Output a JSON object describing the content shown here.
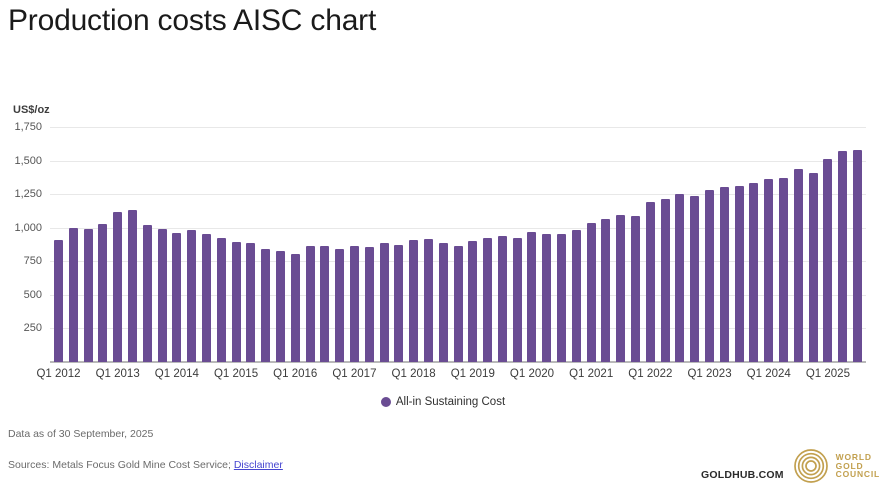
{
  "title": "Production costs AISC chart",
  "chart_data": {
    "type": "bar",
    "title": "Production costs AISC chart",
    "ylabel": "US$/oz",
    "ylim": [
      0,
      1750
    ],
    "grid": true,
    "legend_position": "bottom-center",
    "bar_color": "#6a4c93",
    "series_name": "All-in Sustaining Cost",
    "y_ticks": [
      250,
      500,
      750,
      1000,
      1250,
      1500,
      1750
    ],
    "y_tick_labels": [
      "250",
      "500",
      "750",
      "1,000",
      "1,250",
      "1,500",
      "1,750"
    ],
    "x_tick_every": 4,
    "x_tick_labels": [
      "Q1 2012",
      "Q1 2013",
      "Q1 2014",
      "Q1 2015",
      "Q1 2016",
      "Q1 2017",
      "Q1 2018",
      "Q1 2019",
      "Q1 2020",
      "Q1 2021",
      "Q1 2022",
      "Q1 2023",
      "Q1 2024",
      "Q1 2025"
    ],
    "x": [
      "Q1 2012",
      "Q2 2012",
      "Q3 2012",
      "Q4 2012",
      "Q1 2013",
      "Q2 2013",
      "Q3 2013",
      "Q4 2013",
      "Q1 2014",
      "Q2 2014",
      "Q3 2014",
      "Q4 2014",
      "Q1 2015",
      "Q2 2015",
      "Q3 2015",
      "Q4 2015",
      "Q1 2016",
      "Q2 2016",
      "Q3 2016",
      "Q4 2016",
      "Q1 2017",
      "Q2 2017",
      "Q3 2017",
      "Q4 2017",
      "Q1 2018",
      "Q2 2018",
      "Q3 2018",
      "Q4 2018",
      "Q1 2019",
      "Q2 2019",
      "Q3 2019",
      "Q4 2019",
      "Q1 2020",
      "Q2 2020",
      "Q3 2020",
      "Q4 2020",
      "Q1 2021",
      "Q2 2021",
      "Q3 2021",
      "Q4 2021",
      "Q1 2022",
      "Q2 2022",
      "Q3 2022",
      "Q4 2022",
      "Q1 2023",
      "Q2 2023",
      "Q3 2023",
      "Q4 2023",
      "Q1 2024",
      "Q2 2024",
      "Q3 2024",
      "Q4 2024",
      "Q1 2025",
      "Q2 2025",
      "Q3 2025"
    ],
    "values": [
      910,
      995,
      990,
      1025,
      1120,
      1130,
      1020,
      990,
      960,
      980,
      955,
      925,
      895,
      885,
      840,
      830,
      805,
      865,
      865,
      840,
      865,
      860,
      890,
      875,
      905,
      915,
      890,
      865,
      900,
      920,
      940,
      925,
      965,
      950,
      950,
      980,
      1035,
      1065,
      1095,
      1085,
      1190,
      1215,
      1250,
      1240,
      1280,
      1300,
      1310,
      1335,
      1360,
      1370,
      1440,
      1405,
      1515,
      1570,
      1580
    ]
  },
  "legend": {
    "label": "All-in Sustaining Cost",
    "dot_color": "#6a4c93"
  },
  "footer": {
    "data_as_of": "Data as of 30 September, 2025",
    "sources_prefix": "Sources: Metals Focus Gold Mine Cost Service; ",
    "disclaimer_label": "Disclaimer",
    "goldhub": "GOLDHUB.COM",
    "wgc_lines": [
      "WORLD",
      "GOLD",
      "COUNCIL"
    ]
  },
  "colors": {
    "bar": "#6a4c93",
    "gridline": "#e8e8e8",
    "baseline": "#b9b9b9",
    "title_text": "#1a1a1a",
    "tick_text": "#565656",
    "link": "#4545d0",
    "gold_brand": "#c2a04f"
  }
}
